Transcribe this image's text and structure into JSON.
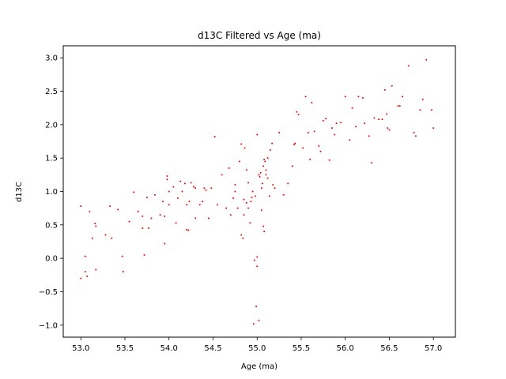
{
  "chart_data": {
    "type": "scatter",
    "title": "d13C Filtered vs Age (ma)",
    "xlabel": "Age (ma)",
    "ylabel": "d13C",
    "xlim": [
      52.8,
      57.25
    ],
    "ylim": [
      -1.18,
      3.18
    ],
    "x_ticks": [
      53.0,
      53.5,
      54.0,
      54.5,
      55.0,
      55.5,
      56.0,
      56.5,
      57.0
    ],
    "x_tick_labels": [
      "53.0",
      "53.5",
      "54.0",
      "54.5",
      "55.0",
      "55.5",
      "56.0",
      "56.5",
      "57.0"
    ],
    "y_ticks": [
      -1.0,
      -0.5,
      0.0,
      0.5,
      1.0,
      1.5,
      2.0,
      2.5,
      3.0
    ],
    "y_tick_labels": [
      "−1.0",
      "−0.5",
      "0.0",
      "0.5",
      "1.0",
      "1.5",
      "2.0",
      "2.5",
      "3.0"
    ],
    "grid": false,
    "marker_color": "#ff0000",
    "series": [
      {
        "points": [
          [
            53.0,
            0.78
          ],
          [
            53.0,
            -0.3
          ],
          [
            53.05,
            -0.2
          ],
          [
            53.05,
            0.03
          ],
          [
            53.07,
            -0.27
          ],
          [
            53.1,
            0.7
          ],
          [
            53.13,
            0.3
          ],
          [
            53.16,
            0.52
          ],
          [
            53.17,
            0.48
          ],
          [
            53.17,
            -0.17
          ],
          [
            53.28,
            0.35
          ],
          [
            53.33,
            0.78
          ],
          [
            53.35,
            0.3
          ],
          [
            53.42,
            0.73
          ],
          [
            53.47,
            0.03
          ],
          [
            53.48,
            -0.2
          ],
          [
            53.55,
            0.55
          ],
          [
            53.6,
            0.99
          ],
          [
            53.65,
            0.7
          ],
          [
            53.7,
            0.63
          ],
          [
            53.7,
            0.45
          ],
          [
            53.72,
            0.05
          ],
          [
            53.75,
            0.91
          ],
          [
            53.77,
            0.45
          ],
          [
            53.8,
            0.6
          ],
          [
            53.84,
            0.95
          ],
          [
            53.9,
            0.65
          ],
          [
            53.93,
            0.85
          ],
          [
            53.95,
            0.63
          ],
          [
            53.95,
            0.22
          ],
          [
            53.98,
            1.23
          ],
          [
            53.98,
            1.18
          ],
          [
            54.0,
            1.0
          ],
          [
            54.0,
            0.8
          ],
          [
            54.05,
            1.07
          ],
          [
            54.08,
            0.53
          ],
          [
            54.1,
            0.9
          ],
          [
            54.13,
            1.15
          ],
          [
            54.15,
            1.0
          ],
          [
            54.18,
            1.12
          ],
          [
            54.2,
            0.43
          ],
          [
            54.2,
            0.8
          ],
          [
            54.22,
            0.42
          ],
          [
            54.23,
            0.85
          ],
          [
            54.25,
            1.13
          ],
          [
            54.28,
            1.07
          ],
          [
            54.3,
            1.05
          ],
          [
            54.3,
            0.6
          ],
          [
            54.35,
            0.8
          ],
          [
            54.38,
            0.85
          ],
          [
            54.4,
            1.05
          ],
          [
            54.42,
            1.02
          ],
          [
            54.45,
            0.6
          ],
          [
            54.48,
            1.05
          ],
          [
            54.52,
            1.82
          ],
          [
            54.55,
            0.8
          ],
          [
            54.6,
            1.25
          ],
          [
            54.65,
            0.75
          ],
          [
            54.68,
            1.35
          ],
          [
            54.7,
            0.65
          ],
          [
            54.73,
            0.9
          ],
          [
            54.75,
            1.1
          ],
          [
            54.75,
            1.0
          ],
          [
            54.78,
            0.75
          ],
          [
            54.8,
            1.45
          ],
          [
            54.82,
            0.35
          ],
          [
            54.82,
            1.71
          ],
          [
            54.84,
            0.3
          ],
          [
            54.85,
            0.88
          ],
          [
            54.85,
            0.65
          ],
          [
            54.86,
            1.65
          ],
          [
            54.88,
            0.83
          ],
          [
            54.88,
            1.32
          ],
          [
            54.9,
            1.13
          ],
          [
            54.9,
            0.75
          ],
          [
            54.92,
            0.53
          ],
          [
            54.93,
            0.85
          ],
          [
            54.94,
            0.91
          ],
          [
            54.95,
            1.0
          ],
          [
            54.96,
            -0.98
          ],
          [
            54.97,
            -0.03
          ],
          [
            54.98,
            0.93
          ],
          [
            54.99,
            -0.72
          ],
          [
            55.0,
            0.02
          ],
          [
            55.0,
            -0.12
          ],
          [
            55.0,
            1.85
          ],
          [
            55.02,
            -0.93
          ],
          [
            55.02,
            1.25
          ],
          [
            55.03,
            1.22
          ],
          [
            55.04,
            1.28
          ],
          [
            55.05,
            1.05
          ],
          [
            55.05,
            0.72
          ],
          [
            55.06,
            1.12
          ],
          [
            55.07,
            0.48
          ],
          [
            55.07,
            1.38
          ],
          [
            55.08,
            1.48
          ],
          [
            55.08,
            0.4
          ],
          [
            55.09,
            1.45
          ],
          [
            55.1,
            1.32
          ],
          [
            55.1,
            1.25
          ],
          [
            55.12,
            1.5
          ],
          [
            55.12,
            1.2
          ],
          [
            55.14,
            0.93
          ],
          [
            55.15,
            1.62
          ],
          [
            55.17,
            1.72
          ],
          [
            55.18,
            1.1
          ],
          [
            55.2,
            1.05
          ],
          [
            55.25,
            1.88
          ],
          [
            55.3,
            0.95
          ],
          [
            55.35,
            1.12
          ],
          [
            55.4,
            1.38
          ],
          [
            55.42,
            1.7
          ],
          [
            55.43,
            1.72
          ],
          [
            55.45,
            2.19
          ],
          [
            55.47,
            2.15
          ],
          [
            55.52,
            1.65
          ],
          [
            55.55,
            2.42
          ],
          [
            55.58,
            1.88
          ],
          [
            55.6,
            1.48
          ],
          [
            55.62,
            2.33
          ],
          [
            55.65,
            1.9
          ],
          [
            55.7,
            1.68
          ],
          [
            55.72,
            1.6
          ],
          [
            55.75,
            2.06
          ],
          [
            55.78,
            2.09
          ],
          [
            55.82,
            1.47
          ],
          [
            55.85,
            1.95
          ],
          [
            55.88,
            1.85
          ],
          [
            55.9,
            2.02
          ],
          [
            55.95,
            2.03
          ],
          [
            56.0,
            2.42
          ],
          [
            56.05,
            1.77
          ],
          [
            56.08,
            2.25
          ],
          [
            56.12,
            1.97
          ],
          [
            56.15,
            2.42
          ],
          [
            56.2,
            2.4
          ],
          [
            56.22,
            2.02
          ],
          [
            56.27,
            1.83
          ],
          [
            56.3,
            1.43
          ],
          [
            56.33,
            2.1
          ],
          [
            56.38,
            2.08
          ],
          [
            56.42,
            2.08
          ],
          [
            56.45,
            2.52
          ],
          [
            56.47,
            2.16
          ],
          [
            56.48,
            1.95
          ],
          [
            56.5,
            1.92
          ],
          [
            56.53,
            2.58
          ],
          [
            56.6,
            2.28
          ],
          [
            56.62,
            2.28
          ],
          [
            56.65,
            2.42
          ],
          [
            56.72,
            2.88
          ],
          [
            56.78,
            1.88
          ],
          [
            56.8,
            1.83
          ],
          [
            56.85,
            2.22
          ],
          [
            56.88,
            2.38
          ],
          [
            56.92,
            2.97
          ],
          [
            56.98,
            2.22
          ],
          [
            57.0,
            1.95
          ]
        ]
      }
    ]
  }
}
